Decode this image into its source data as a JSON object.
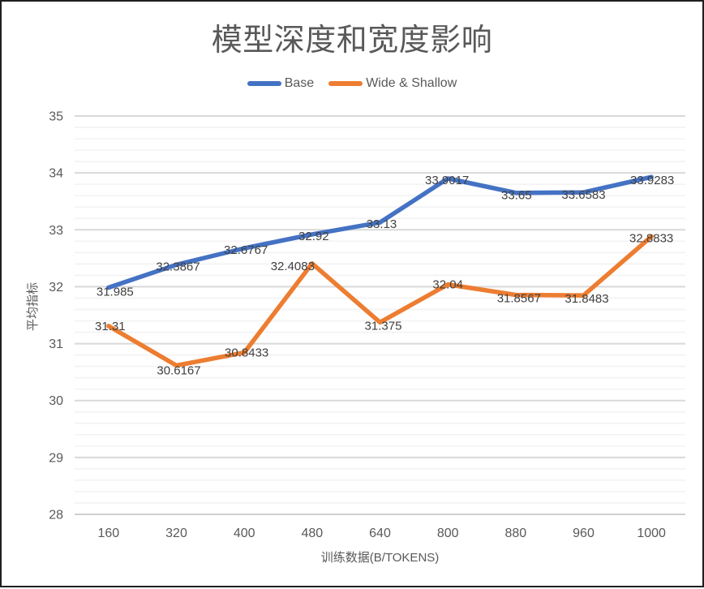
{
  "chart_data": {
    "type": "line",
    "title": "模型深度和宽度影响",
    "xlabel": "训练数据(B/TOKENS)",
    "ylabel": "平均指标",
    "categories": [
      "160",
      "320",
      "400",
      "480",
      "640",
      "800",
      "880",
      "960",
      "1000"
    ],
    "series": [
      {
        "name": "Base",
        "color": "#4472C4",
        "values": [
          31.985,
          32.3867,
          32.6767,
          32.92,
          33.13,
          33.9017,
          33.65,
          33.6583,
          33.9283
        ],
        "labels": [
          "31.985",
          "32.3867",
          "32.6767",
          "32.92",
          "33.13",
          "33.9017",
          "33.65",
          "33.6583",
          "33.9283"
        ],
        "label_offsets": [
          [
            8,
            5
          ],
          [
            2,
            2
          ],
          [
            2,
            2
          ],
          [
            2,
            2
          ],
          [
            2,
            2
          ],
          [
            -1,
            2
          ],
          [
            1,
            3
          ],
          [
            0,
            3
          ],
          [
            1,
            4
          ]
        ]
      },
      {
        "name": "Wide & Shallow",
        "color": "#ED7D31",
        "values": [
          31.31,
          30.6167,
          30.8433,
          32.4083,
          31.375,
          32.04,
          31.8567,
          31.8483,
          32.8833
        ],
        "labels": [
          "31.31",
          "30.6167",
          "30.8433",
          "32.4083",
          "31.375",
          "32.04",
          "31.8567",
          "31.8483",
          "32.8833"
        ],
        "label_offsets": [
          [
            2,
            0
          ],
          [
            3,
            6
          ],
          [
            3,
            0
          ],
          [
            -24,
            3
          ],
          [
            4,
            4
          ],
          [
            0,
            0
          ],
          [
            4,
            4
          ],
          [
            4,
            4
          ],
          [
            0,
            2
          ]
        ]
      }
    ],
    "ylim": [
      28,
      35
    ],
    "y_major_step": 1,
    "y_minor_step": 0.2,
    "y_ticks": [
      "35",
      "34",
      "33",
      "32",
      "31",
      "30",
      "29",
      "28"
    ],
    "grid": "horizontal major+minor",
    "legend_position": "top",
    "colors": {
      "major_grid": "#D9D9D9",
      "minor_grid": "#F3F3F3",
      "axis_line": "#BFBFBF",
      "tick_text": "#595959",
      "data_label_text": "#404040",
      "title_text": "#595959"
    }
  }
}
